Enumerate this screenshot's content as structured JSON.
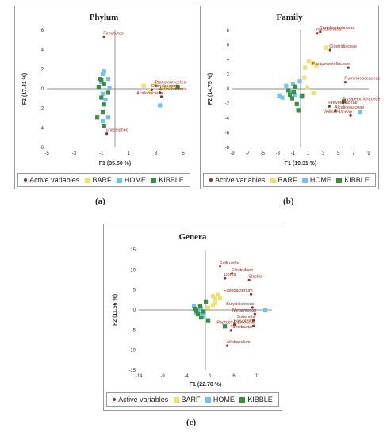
{
  "colors": {
    "active": "#9b2b18",
    "BARF": "#ede36a",
    "HOME": "#6ec4ec",
    "KIBBLE": "#34923f",
    "axis": "#6b6b6b"
  },
  "legend_labels": {
    "active": "Active variables",
    "BARF": "BARF",
    "HOME": "HOME",
    "KIBBLE": "KIBBLE"
  },
  "chart_data": [
    {
      "type": "scatter",
      "title": "Phylum",
      "sublabel": "(a)",
      "xlabel": "F1 (35.50 %)",
      "ylabel": "F2 (17.41 %)",
      "xlim": [
        -5,
        5
      ],
      "ylim": [
        -6,
        6
      ],
      "xticks": [
        -5,
        -3,
        -1,
        1,
        3,
        5
      ],
      "yticks": [
        -6,
        -4,
        -2,
        0,
        2,
        4,
        6
      ],
      "variables": [
        {
          "name": "Firmicutes",
          "x": -0.8,
          "y": 5.3
        },
        {
          "name": "Planctomycetes",
          "x": 3.0,
          "y": 0.3
        },
        {
          "name": "Cyanobacteria",
          "x": 2.7,
          "y": -0.1
        },
        {
          "name": "Actinobacteria",
          "x": 3.3,
          "y": -0.4
        },
        {
          "name": "Acidobacteria",
          "x": 3.4,
          "y": -0.8
        },
        {
          "name": "unassigned",
          "x": -0.6,
          "y": -4.6
        }
      ],
      "series": [
        {
          "name": "BARF",
          "points": [
            [
              2.1,
              0.3
            ],
            [
              3.0,
              0.5
            ],
            [
              2.6,
              -0.2
            ],
            [
              3.6,
              0.1
            ],
            [
              4.1,
              0.2
            ]
          ]
        },
        {
          "name": "HOME",
          "points": [
            [
              -0.9,
              1.5
            ],
            [
              -0.5,
              1.0
            ],
            [
              -1.0,
              0.7
            ],
            [
              -0.4,
              0.1
            ],
            [
              -0.9,
              -0.5
            ],
            [
              -0.7,
              -1.1
            ],
            [
              -0.9,
              -3.3
            ],
            [
              -0.5,
              -2.9
            ],
            [
              3.3,
              -1.7
            ],
            [
              -0.8,
              1.8
            ]
          ]
        },
        {
          "name": "KIBBLE",
          "points": [
            [
              -1.1,
              1.0
            ],
            [
              -0.8,
              0.5
            ],
            [
              -1.2,
              0.2
            ],
            [
              -0.5,
              -0.4
            ],
            [
              -1.0,
              -0.9
            ],
            [
              -0.8,
              -1.6
            ],
            [
              -0.9,
              -2.4
            ],
            [
              -1.3,
              -2.9
            ],
            [
              -0.8,
              -3.8
            ],
            [
              -1.0,
              0.9
            ],
            [
              4.6,
              0.2
            ]
          ]
        }
      ]
    },
    {
      "type": "scatter",
      "title": "Family",
      "sublabel": "(b)",
      "xlabel": "F1 (19.31 %)",
      "ylabel": "F2 (14.75 %)",
      "xlim": [
        -9,
        9
      ],
      "ylim": [
        -8,
        8
      ],
      "xticks": [
        -9,
        -7,
        -5,
        -3,
        -1,
        1,
        3,
        5,
        7,
        9
      ],
      "yticks": [
        -8,
        -6,
        -4,
        -2,
        0,
        2,
        4,
        6,
        8
      ],
      "variables": [
        {
          "name": "Coriobacteriaceae",
          "x": 2.6,
          "y": 7.8
        },
        {
          "name": "mitochondria",
          "x": 2.2,
          "y": 7.6
        },
        {
          "name": "Clostridiaceae",
          "x": 3.9,
          "y": 5.3
        },
        {
          "name": "Paraprevotellaceae",
          "x": 6.3,
          "y": 2.9
        },
        {
          "name": "Ruminococcaceae",
          "x": 5.9,
          "y": 0.9
        },
        {
          "name": "Erysipelotrichaceae",
          "x": 5.6,
          "y": -1.9
        },
        {
          "name": "Prevotellaceae",
          "x": 3.8,
          "y": -2.4
        },
        {
          "name": "Alcaligenaceae",
          "x": 4.6,
          "y": -3.0
        },
        {
          "name": "Veillonellaceae",
          "x": 6.6,
          "y": -3.6
        }
      ],
      "series": [
        {
          "name": "BARF",
          "points": [
            [
              0.6,
              2.9
            ],
            [
              1.6,
              3.5
            ],
            [
              2.1,
              3.1
            ],
            [
              3.3,
              5.6
            ],
            [
              0.9,
              0.2
            ],
            [
              1.7,
              -0.6
            ],
            [
              0.5,
              1.5
            ],
            [
              1.1,
              3.7
            ]
          ]
        },
        {
          "name": "HOME",
          "points": [
            [
              -2.8,
              -0.9
            ],
            [
              -2.4,
              -1.2
            ],
            [
              -1.9,
              0.4
            ],
            [
              -1.0,
              0.6
            ],
            [
              -0.7,
              -0.8
            ],
            [
              -1.4,
              -0.4
            ],
            [
              0.1,
              -1.1
            ],
            [
              7.9,
              -3.2
            ],
            [
              -0.1,
              1.0
            ]
          ]
        },
        {
          "name": "KIBBLE",
          "points": [
            [
              -1.6,
              -0.2
            ],
            [
              -0.9,
              -0.4
            ],
            [
              -0.7,
              0.3
            ],
            [
              -1.1,
              -1.3
            ],
            [
              -0.5,
              -2.1
            ],
            [
              0.2,
              -0.9
            ],
            [
              -0.3,
              -2.9
            ],
            [
              -1.4,
              -0.8
            ],
            [
              5.7,
              -1.7
            ]
          ]
        }
      ]
    },
    {
      "type": "scatter",
      "title": "Genera",
      "sublabel": "(c)",
      "xlabel": "F1 (22.70 %)",
      "ylabel": "F2 (11.56 %)",
      "xlim": [
        -14,
        14
      ],
      "ylim": [
        -15,
        15
      ],
      "xticks": [
        -14,
        -9,
        -4,
        1,
        6,
        11
      ],
      "yticks": [
        -15,
        -10,
        -5,
        0,
        5,
        10,
        15
      ],
      "variables": [
        {
          "name": "Collinsella",
          "x": 3.1,
          "y": 10.9
        },
        {
          "name": "Clostridium",
          "x": 5.6,
          "y": 9.1
        },
        {
          "name": "Dorea",
          "x": 4.1,
          "y": 7.9
        },
        {
          "name": "Slackia",
          "x": 9.2,
          "y": 7.4
        },
        {
          "name": "Fusobacterium",
          "x": 9.6,
          "y": 3.9
        },
        {
          "name": "Butyricicoccus",
          "x": 9.9,
          "y": 0.6
        },
        {
          "name": "Megamonas",
          "x": 10.4,
          "y": -1.0
        },
        {
          "name": "Sutterella",
          "x": 10.1,
          "y": -2.6
        },
        {
          "name": "Prevotella",
          "x": 6.1,
          "y": -3.7
        },
        {
          "name": "Turicibacter",
          "x": 5.4,
          "y": -5.1
        },
        {
          "name": "Allobaculum",
          "x": 4.6,
          "y": -8.9
        },
        {
          "name": "Peptostreptococcus",
          "x": 10.1,
          "y": -4.0
        }
      ],
      "series": [
        {
          "name": "BARF",
          "points": [
            [
              1.6,
              3.4
            ],
            [
              2.1,
              2.7
            ],
            [
              2.6,
              3.9
            ],
            [
              3.1,
              2.9
            ],
            [
              1.6,
              1.2
            ],
            [
              0.6,
              0.6
            ],
            [
              2.1,
              1.6
            ]
          ]
        },
        {
          "name": "HOME",
          "points": [
            [
              -2.4,
              0.9
            ],
            [
              -1.9,
              -0.6
            ],
            [
              -1.4,
              -1.1
            ],
            [
              -0.9,
              0.4
            ],
            [
              -0.4,
              -1.6
            ],
            [
              -1.6,
              0.1
            ],
            [
              12.6,
              -0.1
            ],
            [
              -0.6,
              -0.6
            ]
          ]
        },
        {
          "name": "KIBBLE",
          "points": [
            [
              -2.1,
              0.3
            ],
            [
              -1.6,
              -1.1
            ],
            [
              -0.9,
              -1.9
            ],
            [
              -1.1,
              0.9
            ],
            [
              0.1,
              2.1
            ],
            [
              -0.4,
              -0.4
            ],
            [
              4.1,
              -4.1
            ],
            [
              0.6,
              -2.6
            ],
            [
              -1.9,
              -0.2
            ]
          ]
        }
      ]
    }
  ]
}
